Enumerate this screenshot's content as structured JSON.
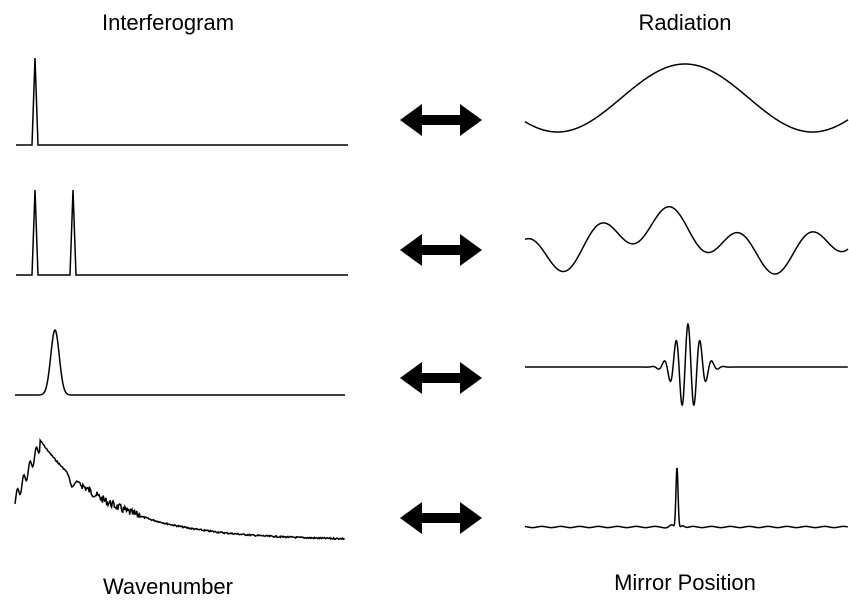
{
  "labels": {
    "top_left": "Interferogram",
    "top_right": "Radiation",
    "bottom_left": "Wavenumber",
    "bottom_right": "Mirror Position"
  }
}
